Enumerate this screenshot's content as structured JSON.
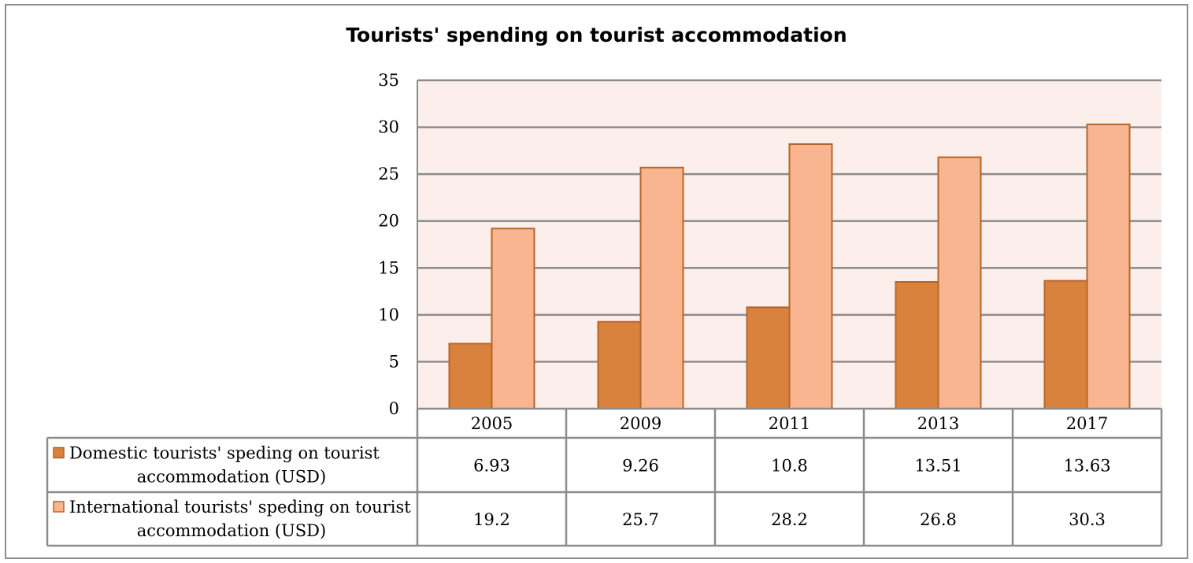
{
  "chart_data": {
    "type": "bar",
    "title": "Tourists' spending on tourist accommodation",
    "categories": [
      "2005",
      "2009",
      "2011",
      "2013",
      "2017"
    ],
    "ylim": [
      0,
      35
    ],
    "yticks": [
      0,
      5,
      10,
      15,
      20,
      25,
      30,
      35
    ],
    "grid": true,
    "legend": "data-table",
    "series": [
      {
        "name": "Domestic tourists' speding on tourist accommodation (USD)",
        "name_lines": [
          "Domestic tourists' speding on tourist",
          "accommodation (USD)"
        ],
        "values": [
          6.93,
          9.26,
          10.8,
          13.51,
          13.63
        ],
        "labels": [
          "6.93",
          "9.26",
          "10.8",
          "13.51",
          "13.63"
        ],
        "color": "#D9823E"
      },
      {
        "name": "International tourists' speding on tourist accommodation (USD)",
        "name_lines": [
          "International tourists' speding on tourist",
          "accommodation (USD)"
        ],
        "values": [
          19.2,
          25.7,
          28.2,
          26.8,
          30.3
        ],
        "labels": [
          "19.2",
          "25.7",
          "28.2",
          "26.8",
          "30.3"
        ],
        "color": "#F8B590"
      }
    ]
  },
  "colors": {
    "plot_background": "#FCEEEA",
    "bar_stroke": "#B5652A",
    "gridline": "#8c8c8c",
    "table_border": "#8c8c8c"
  }
}
